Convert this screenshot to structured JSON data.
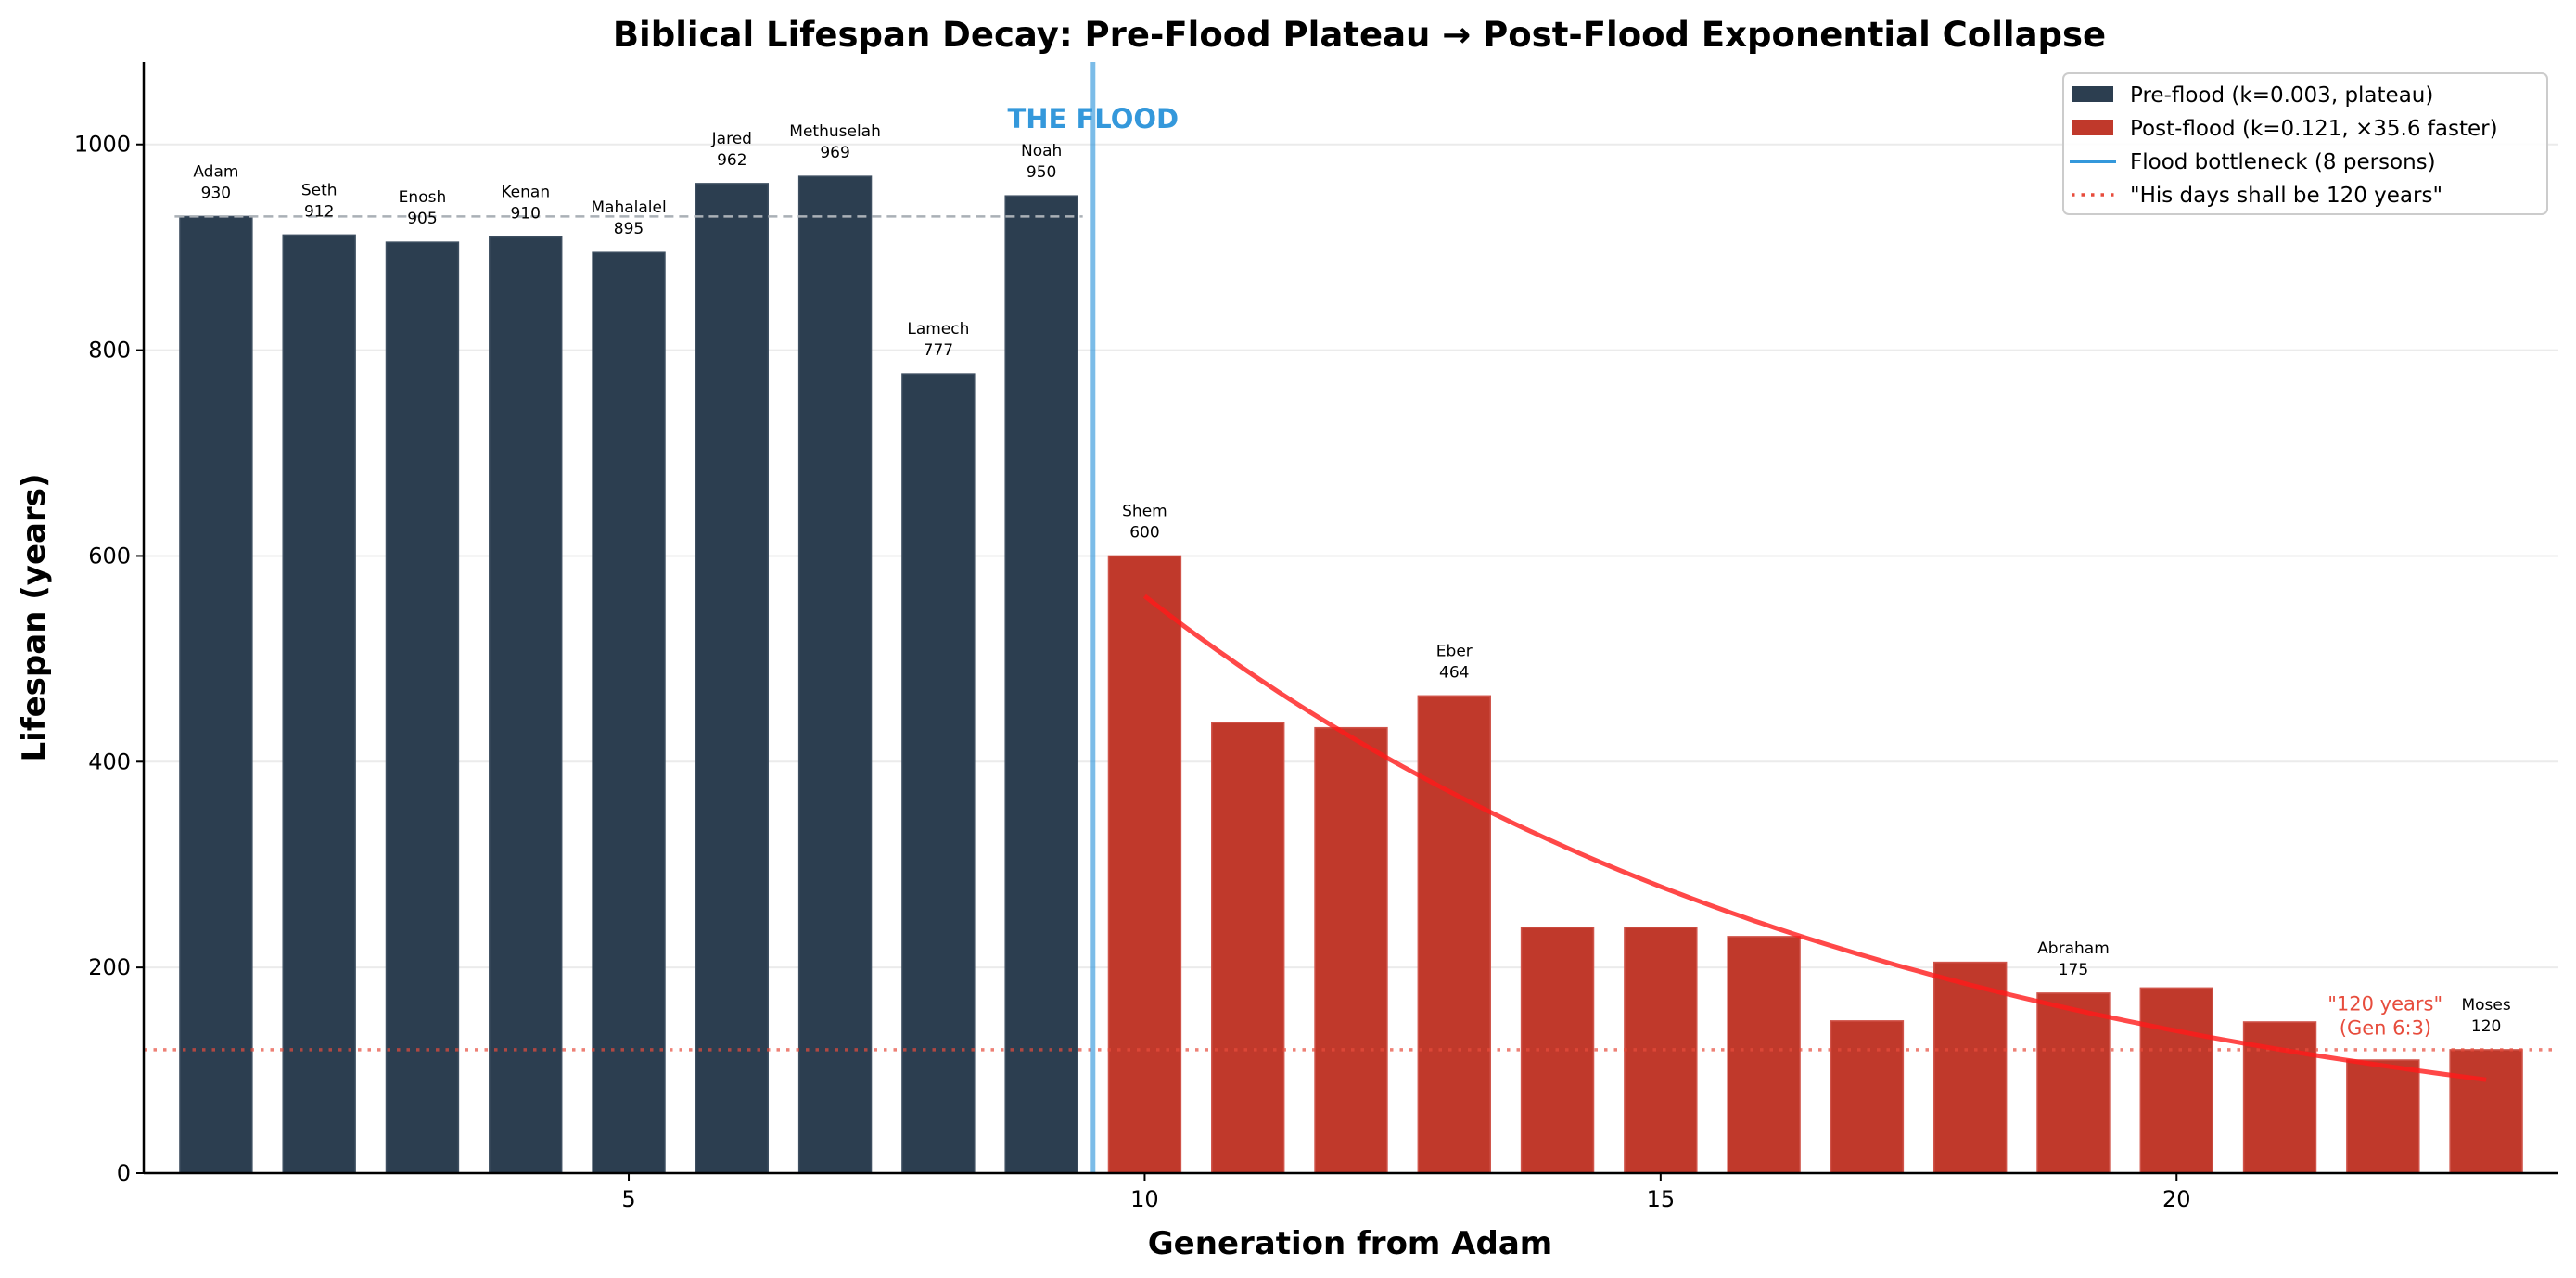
{
  "chart_data": {
    "type": "bar",
    "title": "Biblical Lifespan Decay: Pre-Flood Plateau → Post-Flood Exponential Collapse",
    "xlabel": "Generation from Adam",
    "ylabel": "Lifespan (years)",
    "xlim": [
      0.3,
      23.7
    ],
    "ylim": [
      0,
      1080
    ],
    "xticks": [
      5,
      10,
      15,
      20
    ],
    "yticks": [
      0,
      200,
      400,
      600,
      800,
      1000
    ],
    "grid": "horizontal",
    "legend_placement": "top-right",
    "colors": {
      "pre": "#2c3e50",
      "post": "#c0392b",
      "flood": "#3498db",
      "fit": "#ff1a1a",
      "limit": "#e74c3c",
      "ref": "#aab0b6"
    },
    "series": [
      {
        "name": "Pre-flood (k=0.003, plateau)",
        "group": "pre",
        "x": [
          1,
          2,
          3,
          4,
          5,
          6,
          7,
          8,
          9
        ],
        "values": [
          930,
          912,
          905,
          910,
          895,
          962,
          969,
          777,
          950
        ]
      },
      {
        "name": "Post-flood (k=0.121, ×35.6 faster)",
        "group": "post",
        "x": [
          10,
          11,
          12,
          13,
          14,
          15,
          16,
          17,
          18,
          19,
          20,
          21,
          22,
          23
        ],
        "values": [
          600,
          438,
          433,
          464,
          239,
          239,
          230,
          148,
          205,
          175,
          180,
          147,
          110,
          120
        ]
      }
    ],
    "bar_labels": [
      {
        "x": 1,
        "name": "Adam",
        "value": "930"
      },
      {
        "x": 2,
        "name": "Seth",
        "value": "912"
      },
      {
        "x": 3,
        "name": "Enosh",
        "value": "905"
      },
      {
        "x": 4,
        "name": "Kenan",
        "value": "910"
      },
      {
        "x": 5,
        "name": "Mahalalel",
        "value": "895"
      },
      {
        "x": 6,
        "name": "Jared",
        "value": "962"
      },
      {
        "x": 7,
        "name": "Methuselah",
        "value": "969"
      },
      {
        "x": 8,
        "name": "Lamech",
        "value": "777"
      },
      {
        "x": 9,
        "name": "Noah",
        "value": "950"
      },
      {
        "x": 10,
        "name": "Shem",
        "value": "600"
      },
      {
        "x": 13,
        "name": "Eber",
        "value": "464"
      },
      {
        "x": 19,
        "name": "Abraham",
        "value": "175"
      },
      {
        "x": 23,
        "name": "Moses",
        "value": "120"
      }
    ],
    "fit_curve": {
      "x_start": 10,
      "x_end": 23,
      "a": 561,
      "k": 0.14
    },
    "reference_line": {
      "y": 930,
      "x_start": 0.6,
      "x_end": 9.4
    },
    "flood_line": {
      "x": 9.5,
      "label": "THE FLOOD",
      "label_y": 1025
    },
    "limit_line": {
      "y": 120
    },
    "limit_annotation": {
      "x": 22.5,
      "line1": "\"120 years\"",
      "line2": "(Gen 6:3)"
    },
    "legend": [
      {
        "label": "Pre-flood (k=0.003, plateau)",
        "kind": "patch",
        "color": "#2c3e50"
      },
      {
        "label": "Post-flood (k=0.121, ×35.6 faster)",
        "kind": "patch",
        "color": "#c0392b"
      },
      {
        "label": "Flood bottleneck (8 persons)",
        "kind": "line",
        "color": "#3498db"
      },
      {
        "label": "\"His days shall be 120 years\"",
        "kind": "dotted",
        "color": "#e74c3c"
      }
    ]
  }
}
